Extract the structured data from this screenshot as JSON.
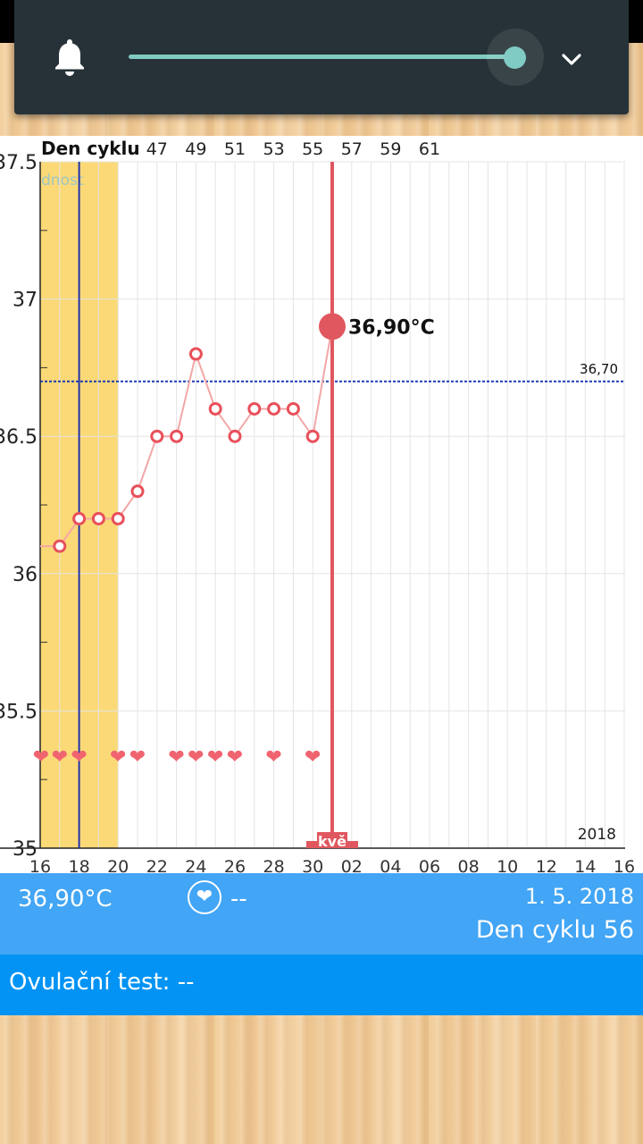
{
  "notification": {
    "bell_icon": "bell-icon",
    "slider_value": 1.0,
    "accent": "#80cbc4",
    "expand_icon": "chevron-down-icon"
  },
  "chart_data": {
    "type": "line",
    "top_label": "Den cyklu",
    "top_ticks": [
      "47",
      "49",
      "51",
      "53",
      "55",
      "57",
      "59",
      "61"
    ],
    "fertile_label": "dnost",
    "x_ticks": [
      "16",
      "18",
      "20",
      "22",
      "24",
      "26",
      "28",
      "30",
      "02",
      "04",
      "06",
      "08",
      "10",
      "12",
      "14",
      "16"
    ],
    "y_ticks": [
      "37.5",
      "37",
      "36.5",
      "36",
      "35.5",
      "35"
    ],
    "ylim": [
      35,
      37.5
    ],
    "year_label": "2018",
    "cover_line": {
      "value": 36.7,
      "label": "36,70"
    },
    "series": [
      {
        "x": [
          16,
          17,
          18,
          19,
          20,
          21,
          22,
          23,
          24,
          25,
          26,
          27,
          28,
          29,
          30,
          31
        ],
        "y": [
          36.1,
          36.1,
          36.2,
          36.2,
          36.2,
          36.3,
          36.5,
          36.5,
          36.8,
          36.6,
          36.5,
          36.6,
          36.6,
          36.6,
          36.5,
          36.9
        ]
      }
    ],
    "highlight": {
      "x": 31,
      "y": 36.9,
      "label": "36,90°C"
    },
    "hearts_x": [
      16,
      17,
      18,
      20,
      21,
      23,
      24,
      25,
      26,
      28,
      30
    ],
    "fertile_range": [
      16,
      20
    ],
    "ovulation_x": 18,
    "period_label": "kvě",
    "colors": {
      "line": "#f4a6a6",
      "point": "#e8505b",
      "selected": "#e0575f",
      "cover": "#1a3bb5",
      "fertile": "#fbd976",
      "ovulation": "#2233aa"
    }
  },
  "info": {
    "temperature": "36,90°C",
    "heart_icon": "heart-icon",
    "heart_value": "--",
    "date": "1. 5. 2018",
    "cycle_day": "Den cyklu 56"
  },
  "ovulation": {
    "text": "Ovulační test: --"
  }
}
